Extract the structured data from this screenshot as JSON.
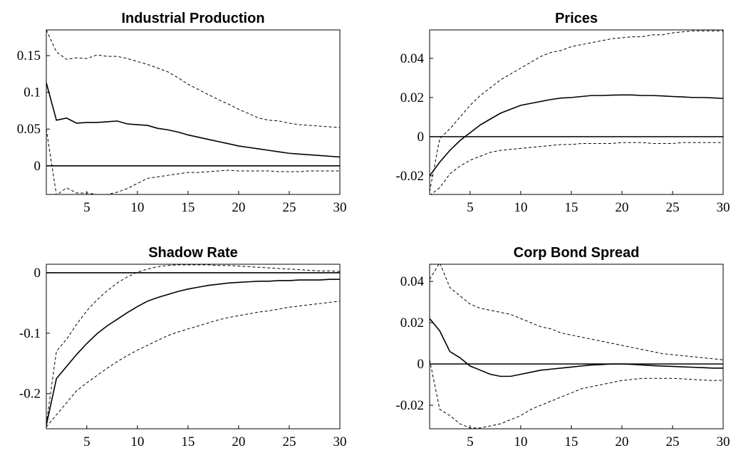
{
  "chart_data": [
    {
      "type": "line",
      "title": "Industrial Production",
      "x": [
        1,
        2,
        3,
        4,
        5,
        6,
        7,
        8,
        9,
        10,
        11,
        12,
        13,
        14,
        15,
        16,
        17,
        18,
        19,
        20,
        21,
        22,
        23,
        24,
        25,
        26,
        27,
        28,
        29,
        30
      ],
      "xlim": [
        1,
        30
      ],
      "xticks": [
        5,
        10,
        15,
        20,
        25,
        30
      ],
      "ylim": [
        -0.039,
        0.185
      ],
      "yticks": [
        0,
        0.05,
        0.1,
        0.15
      ],
      "zero_line": 0,
      "series": [
        {
          "color": "#000000",
          "dashed": false,
          "values": [
            0.113,
            0.062,
            0.065,
            0.058,
            0.059,
            0.059,
            0.06,
            0.061,
            0.057,
            0.056,
            0.055,
            0.051,
            0.049,
            0.046,
            0.042,
            0.039,
            0.036,
            0.033,
            0.03,
            0.027,
            0.025,
            0.023,
            0.021,
            0.019,
            0.017,
            0.016,
            0.015,
            0.014,
            0.013,
            0.012
          ]
        },
        {
          "color": "#000000",
          "dashed": true,
          "values": [
            0.185,
            0.155,
            0.145,
            0.147,
            0.146,
            0.151,
            0.149,
            0.149,
            0.146,
            0.142,
            0.138,
            0.133,
            0.128,
            0.12,
            0.111,
            0.104,
            0.097,
            0.09,
            0.084,
            0.077,
            0.071,
            0.065,
            0.062,
            0.061,
            0.058,
            0.056,
            0.055,
            0.054,
            0.053,
            0.052
          ]
        },
        {
          "color": "#000000",
          "dashed": true,
          "values": [
            0.05,
            -0.04,
            -0.03,
            -0.037,
            -0.037,
            -0.039,
            -0.039,
            -0.036,
            -0.031,
            -0.024,
            -0.017,
            -0.015,
            -0.013,
            -0.011,
            -0.009,
            -0.009,
            -0.008,
            -0.007,
            -0.006,
            -0.007,
            -0.007,
            -0.007,
            -0.007,
            -0.008,
            -0.008,
            -0.008,
            -0.007,
            -0.007,
            -0.007,
            -0.007
          ]
        }
      ]
    },
    {
      "type": "line",
      "title": "Prices",
      "x": [
        1,
        2,
        3,
        4,
        5,
        6,
        7,
        8,
        9,
        10,
        11,
        12,
        13,
        14,
        15,
        16,
        17,
        18,
        19,
        20,
        21,
        22,
        23,
        24,
        25,
        26,
        27,
        28,
        29,
        30
      ],
      "xlim": [
        1,
        30
      ],
      "xticks": [
        5,
        10,
        15,
        20,
        25,
        30
      ],
      "ylim": [
        -0.0295,
        0.0545
      ],
      "yticks": [
        -0.02,
        0,
        0.02,
        0.04
      ],
      "zero_line": 0,
      "series": [
        {
          "color": "#000000",
          "dashed": false,
          "values": [
            -0.02,
            -0.013,
            -0.007,
            -0.002,
            0.002,
            0.006,
            0.009,
            0.012,
            0.014,
            0.016,
            0.017,
            0.018,
            0.019,
            0.0197,
            0.02,
            0.0205,
            0.021,
            0.021,
            0.0212,
            0.0213,
            0.0213,
            0.021,
            0.021,
            0.0208,
            0.0205,
            0.0203,
            0.02,
            0.02,
            0.0198,
            0.0195
          ]
        },
        {
          "color": "#000000",
          "dashed": true,
          "values": [
            -0.028,
            -0.001,
            0.004,
            0.01,
            0.016,
            0.021,
            0.025,
            0.029,
            0.032,
            0.035,
            0.038,
            0.041,
            0.043,
            0.044,
            0.046,
            0.047,
            0.048,
            0.049,
            0.05,
            0.0505,
            0.051,
            0.051,
            0.052,
            0.052,
            0.053,
            0.0535,
            0.054,
            0.054,
            0.054,
            0.054
          ]
        },
        {
          "color": "#000000",
          "dashed": true,
          "values": [
            -0.03,
            -0.026,
            -0.019,
            -0.015,
            -0.012,
            -0.01,
            -0.008,
            -0.007,
            -0.0065,
            -0.006,
            -0.0055,
            -0.005,
            -0.0045,
            -0.004,
            -0.004,
            -0.0035,
            -0.0035,
            -0.0035,
            -0.0035,
            -0.003,
            -0.003,
            -0.003,
            -0.0035,
            -0.0035,
            -0.0035,
            -0.003,
            -0.003,
            -0.003,
            -0.003,
            -0.003
          ]
        }
      ]
    },
    {
      "type": "line",
      "title": "Shadow Rate",
      "x": [
        1,
        2,
        3,
        4,
        5,
        6,
        7,
        8,
        9,
        10,
        11,
        12,
        13,
        14,
        15,
        16,
        17,
        18,
        19,
        20,
        21,
        22,
        23,
        24,
        25,
        26,
        27,
        28,
        29,
        30
      ],
      "xlim": [
        1,
        30
      ],
      "xticks": [
        5,
        10,
        15,
        20,
        25,
        30
      ],
      "ylim": [
        -0.258,
        0.014
      ],
      "yticks": [
        -0.2,
        -0.1,
        0
      ],
      "zero_line": 0,
      "series": [
        {
          "color": "#000000",
          "dashed": false,
          "values": [
            -0.252,
            -0.175,
            -0.155,
            -0.135,
            -0.117,
            -0.101,
            -0.088,
            -0.077,
            -0.066,
            -0.056,
            -0.047,
            -0.041,
            -0.036,
            -0.031,
            -0.027,
            -0.024,
            -0.021,
            -0.019,
            -0.017,
            -0.016,
            -0.015,
            -0.014,
            -0.014,
            -0.013,
            -0.013,
            -0.012,
            -0.012,
            -0.012,
            -0.011,
            -0.011
          ]
        },
        {
          "color": "#000000",
          "dashed": true,
          "values": [
            -0.25,
            -0.13,
            -0.11,
            -0.085,
            -0.063,
            -0.045,
            -0.03,
            -0.017,
            -0.007,
            0.001,
            0.006,
            0.01,
            0.012,
            0.013,
            0.013,
            0.013,
            0.013,
            0.012,
            0.012,
            0.011,
            0.01,
            0.009,
            0.008,
            0.007,
            0.006,
            0.005,
            0.004,
            0.003,
            0.003,
            0.002
          ]
        },
        {
          "color": "#000000",
          "dashed": true,
          "values": [
            -0.255,
            -0.235,
            -0.215,
            -0.195,
            -0.182,
            -0.17,
            -0.158,
            -0.147,
            -0.137,
            -0.128,
            -0.12,
            -0.112,
            -0.104,
            -0.098,
            -0.093,
            -0.088,
            -0.083,
            -0.078,
            -0.074,
            -0.071,
            -0.068,
            -0.065,
            -0.063,
            -0.06,
            -0.057,
            -0.055,
            -0.053,
            -0.051,
            -0.049,
            -0.047
          ]
        }
      ]
    },
    {
      "type": "line",
      "title": "Corp Bond Spread",
      "x": [
        1,
        2,
        3,
        4,
        5,
        6,
        7,
        8,
        9,
        10,
        11,
        12,
        13,
        14,
        15,
        16,
        17,
        18,
        19,
        20,
        21,
        22,
        23,
        24,
        25,
        26,
        27,
        28,
        29,
        30
      ],
      "xlim": [
        1,
        30
      ],
      "xticks": [
        5,
        10,
        15,
        20,
        25,
        30
      ],
      "ylim": [
        -0.0314,
        0.0483
      ],
      "yticks": [
        -0.02,
        0,
        0.02,
        0.04
      ],
      "zero_line": 0,
      "series": [
        {
          "color": "#000000",
          "dashed": false,
          "values": [
            0.022,
            0.016,
            0.006,
            0.003,
            -0.001,
            -0.003,
            -0.005,
            -0.006,
            -0.006,
            -0.005,
            -0.004,
            -0.003,
            -0.0025,
            -0.002,
            -0.0015,
            -0.001,
            -0.0005,
            -0.0003,
            0.0,
            0.0,
            -0.0002,
            -0.0005,
            -0.0008,
            -0.001,
            -0.0012,
            -0.0014,
            -0.0016,
            -0.0018,
            -0.002,
            -0.002
          ]
        },
        {
          "color": "#000000",
          "dashed": true,
          "values": [
            0.041,
            0.049,
            0.037,
            0.033,
            0.029,
            0.027,
            0.026,
            0.025,
            0.024,
            0.022,
            0.02,
            0.018,
            0.017,
            0.015,
            0.014,
            0.013,
            0.012,
            0.011,
            0.01,
            0.009,
            0.008,
            0.007,
            0.006,
            0.005,
            0.0045,
            0.004,
            0.0035,
            0.003,
            0.0025,
            0.002
          ]
        },
        {
          "color": "#000000",
          "dashed": true,
          "values": [
            0.002,
            -0.022,
            -0.025,
            -0.029,
            -0.031,
            -0.031,
            -0.03,
            -0.029,
            -0.027,
            -0.025,
            -0.022,
            -0.02,
            -0.018,
            -0.016,
            -0.014,
            -0.012,
            -0.011,
            -0.01,
            -0.009,
            -0.008,
            -0.0075,
            -0.007,
            -0.007,
            -0.007,
            -0.007,
            -0.0072,
            -0.0075,
            -0.0078,
            -0.008,
            -0.008
          ]
        }
      ]
    }
  ]
}
